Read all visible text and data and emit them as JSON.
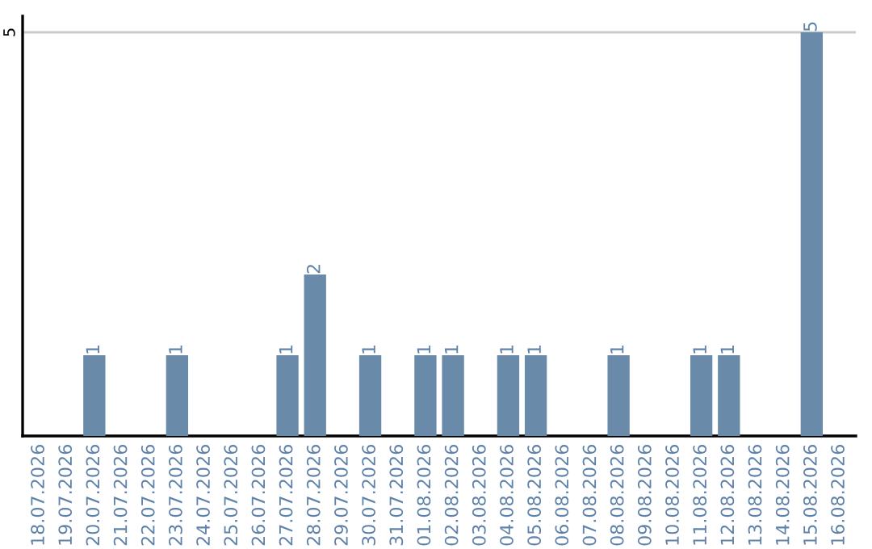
{
  "chart_data": {
    "type": "bar",
    "categories": [
      "18.07.2026",
      "19.07.2026",
      "20.07.2026",
      "21.07.2026",
      "22.07.2026",
      "23.07.2026",
      "24.07.2026",
      "25.07.2026",
      "26.07.2026",
      "27.07.2026",
      "28.07.2026",
      "29.07.2026",
      "30.07.2026",
      "31.07.2026",
      "01.08.2026",
      "02.08.2026",
      "03.08.2026",
      "04.08.2026",
      "05.08.2026",
      "06.08.2026",
      "07.08.2026",
      "08.08.2026",
      "09.08.2026",
      "10.08.2026",
      "11.08.2026",
      "12.08.2026",
      "13.08.2026",
      "14.08.2026",
      "15.08.2026",
      "16.08.2026"
    ],
    "values": [
      0,
      0,
      1,
      0,
      0,
      1,
      0,
      0,
      0,
      1,
      2,
      0,
      1,
      0,
      1,
      1,
      0,
      1,
      1,
      0,
      0,
      1,
      0,
      0,
      1,
      1,
      0,
      0,
      5,
      0
    ],
    "value_labels": [
      null,
      null,
      "1",
      null,
      null,
      "1",
      null,
      null,
      null,
      "1",
      "2",
      null,
      "1",
      null,
      "1",
      "1",
      null,
      "1",
      "1",
      null,
      null,
      "1",
      null,
      null,
      "1",
      "1",
      null,
      null,
      "5",
      null
    ],
    "color": "#6a8aaa",
    "ylim": [
      0,
      5.2
    ],
    "yticks": [
      5
    ],
    "grid": "y"
  }
}
